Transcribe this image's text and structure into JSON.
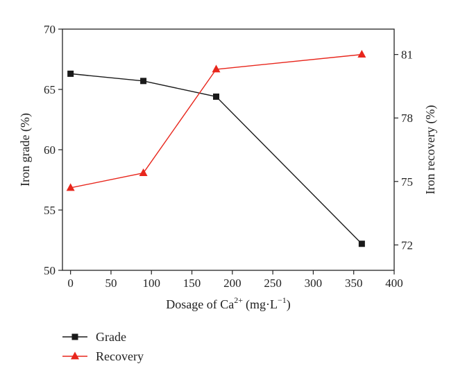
{
  "chart_data": {
    "type": "line",
    "title": "",
    "xlabel": "Dosage of Ca",
    "xlabel_superscript": "2+",
    "xlabel_units": "(mg·L",
    "xlabel_units_superscript": "−1",
    "xlabel_units_close": ")",
    "ylabel_left": "Iron grade (%)",
    "ylabel_right": "Iron recovery (%)",
    "xlim": [
      -10,
      400
    ],
    "ylim_left": [
      50,
      70
    ],
    "ylim_right": [
      70.8,
      82.2
    ],
    "x_ticks": [
      0,
      50,
      100,
      150,
      200,
      250,
      300,
      350,
      400
    ],
    "y_left_ticks": [
      50,
      55,
      60,
      65,
      70
    ],
    "y_right_ticks": [
      72,
      75,
      78,
      81
    ],
    "grid": false,
    "legend_position": "bottom-left",
    "series": [
      {
        "name": "Grade",
        "axis": "left",
        "color": "#1a1a1a",
        "marker": "square",
        "x": [
          0,
          90,
          180,
          360
        ],
        "y": [
          66.3,
          65.7,
          64.4,
          52.2
        ]
      },
      {
        "name": "Recovery",
        "axis": "right",
        "color": "#e8261c",
        "marker": "triangle",
        "x": [
          0,
          90,
          180,
          360
        ],
        "y": [
          74.7,
          75.4,
          80.3,
          81.0
        ]
      }
    ]
  }
}
